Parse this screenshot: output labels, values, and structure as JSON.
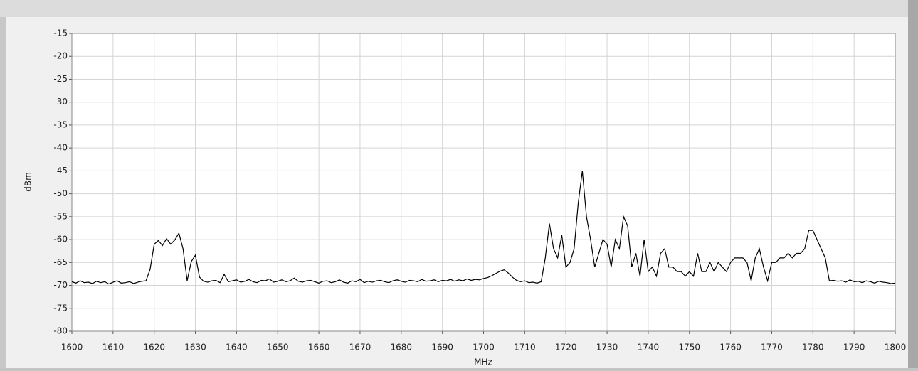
{
  "chart_data": {
    "type": "line",
    "x_label": "MHz",
    "y_label": "dBm",
    "x": [
      1600,
      1601,
      1602,
      1603,
      1604,
      1605,
      1606,
      1607,
      1608,
      1609,
      1610,
      1611,
      1612,
      1613,
      1614,
      1615,
      1616,
      1617,
      1618,
      1619,
      1620,
      1621,
      1622,
      1623,
      1624,
      1625,
      1626,
      1627,
      1628,
      1629,
      1630,
      1631,
      1632,
      1633,
      1634,
      1635,
      1636,
      1637,
      1638,
      1639,
      1640,
      1641,
      1642,
      1643,
      1644,
      1645,
      1646,
      1647,
      1648,
      1649,
      1650,
      1651,
      1652,
      1653,
      1654,
      1655,
      1656,
      1657,
      1658,
      1659,
      1660,
      1661,
      1662,
      1663,
      1664,
      1665,
      1666,
      1667,
      1668,
      1669,
      1670,
      1671,
      1672,
      1673,
      1674,
      1675,
      1676,
      1677,
      1678,
      1679,
      1680,
      1681,
      1682,
      1683,
      1684,
      1685,
      1686,
      1687,
      1688,
      1689,
      1690,
      1691,
      1692,
      1693,
      1694,
      1695,
      1696,
      1697,
      1698,
      1699,
      1700,
      1701,
      1702,
      1703,
      1704,
      1705,
      1706,
      1707,
      1708,
      1709,
      1710,
      1711,
      1712,
      1713,
      1714,
      1715,
      1716,
      1717,
      1718,
      1719,
      1720,
      1721,
      1722,
      1723,
      1724,
      1725,
      1726,
      1727,
      1728,
      1729,
      1730,
      1731,
      1732,
      1733,
      1734,
      1735,
      1736,
      1737,
      1738,
      1739,
      1740,
      1741,
      1742,
      1743,
      1744,
      1745,
      1746,
      1747,
      1748,
      1749,
      1750,
      1751,
      1752,
      1753,
      1754,
      1755,
      1756,
      1757,
      1758,
      1759,
      1760,
      1761,
      1762,
      1763,
      1764,
      1765,
      1766,
      1767,
      1768,
      1769,
      1770,
      1771,
      1772,
      1773,
      1774,
      1775,
      1776,
      1777,
      1778,
      1779,
      1780,
      1781,
      1782,
      1783,
      1784,
      1785,
      1786,
      1787,
      1788,
      1789,
      1790,
      1791,
      1792,
      1793,
      1794,
      1795,
      1796,
      1797,
      1798,
      1799,
      1800
    ],
    "series": [
      {
        "color": "#000000",
        "values": [
          -69.2,
          -69.5,
          -69.0,
          -69.4,
          -69.3,
          -69.6,
          -69.1,
          -69.4,
          -69.2,
          -69.7,
          -69.3,
          -69.0,
          -69.5,
          -69.4,
          -69.2,
          -69.6,
          -69.3,
          -69.1,
          -69.0,
          -66.5,
          -61.0,
          -60.2,
          -61.3,
          -59.8,
          -61.0,
          -60.1,
          -58.6,
          -62.0,
          -69.0,
          -64.8,
          -63.4,
          -68.2,
          -69.1,
          -69.3,
          -69.0,
          -68.9,
          -69.4,
          -67.6,
          -69.2,
          -69.0,
          -68.8,
          -69.3,
          -69.1,
          -68.7,
          -69.2,
          -69.4,
          -68.9,
          -69.0,
          -68.6,
          -69.3,
          -69.1,
          -68.8,
          -69.2,
          -69.0,
          -68.4,
          -69.1,
          -69.3,
          -69.0,
          -68.9,
          -69.2,
          -69.5,
          -69.1,
          -69.0,
          -69.4,
          -69.2,
          -68.8,
          -69.3,
          -69.5,
          -69.0,
          -69.2,
          -68.7,
          -69.4,
          -69.1,
          -69.3,
          -69.0,
          -68.9,
          -69.2,
          -69.4,
          -69.0,
          -68.8,
          -69.1,
          -69.3,
          -68.9,
          -69.0,
          -69.2,
          -68.7,
          -69.1,
          -69.0,
          -68.8,
          -69.2,
          -68.9,
          -69.0,
          -68.7,
          -69.1,
          -68.8,
          -69.0,
          -68.6,
          -68.9,
          -68.7,
          -68.8,
          -68.5,
          -68.3,
          -67.9,
          -67.4,
          -66.9,
          -66.6,
          -67.3,
          -68.2,
          -68.9,
          -69.2,
          -69.0,
          -69.4,
          -69.3,
          -69.5,
          -69.2,
          -64.0,
          -56.5,
          -62.0,
          -64.0,
          -59.0,
          -66.0,
          -65.0,
          -62.0,
          -52.0,
          -45.0,
          -55.0,
          -60.0,
          -66.0,
          -63.0,
          -60.0,
          -61.0,
          -66.0,
          -60.0,
          -62.0,
          -55.0,
          -57.0,
          -66.0,
          -63.0,
          -68.0,
          -60.0,
          -67.0,
          -66.0,
          -68.0,
          -63.0,
          -62.0,
          -66.0,
          -66.0,
          -67.0,
          -67.0,
          -68.0,
          -67.0,
          -68.0,
          -63.0,
          -67.0,
          -67.0,
          -65.0,
          -67.0,
          -65.0,
          -66.0,
          -67.0,
          -65.0,
          -64.0,
          -64.0,
          -64.0,
          -65.0,
          -69.0,
          -64.0,
          -62.0,
          -66.0,
          -69.0,
          -65.0,
          -65.0,
          -64.0,
          -64.0,
          -63.0,
          -64.0,
          -63.0,
          -63.0,
          -62.0,
          -58.0,
          -58.0,
          -60.0,
          -62.0,
          -64.0,
          -69.0,
          -68.9,
          -69.1,
          -69.0,
          -69.3,
          -68.8,
          -69.2,
          -69.1,
          -69.4,
          -69.0,
          -69.2,
          -69.5,
          -69.1,
          -69.3,
          -69.4,
          -69.6,
          -69.5
        ]
      }
    ],
    "xlim": [
      1600,
      1800
    ],
    "ylim": [
      -80,
      -15
    ],
    "xticks": [
      1600,
      1610,
      1620,
      1630,
      1640,
      1650,
      1660,
      1670,
      1680,
      1690,
      1700,
      1710,
      1720,
      1730,
      1740,
      1750,
      1760,
      1770,
      1780,
      1790,
      1800
    ],
    "yticks": [
      -80,
      -75,
      -70,
      -65,
      -60,
      -55,
      -50,
      -45,
      -40,
      -35,
      -30,
      -25,
      -20,
      -15
    ],
    "grid": true
  }
}
